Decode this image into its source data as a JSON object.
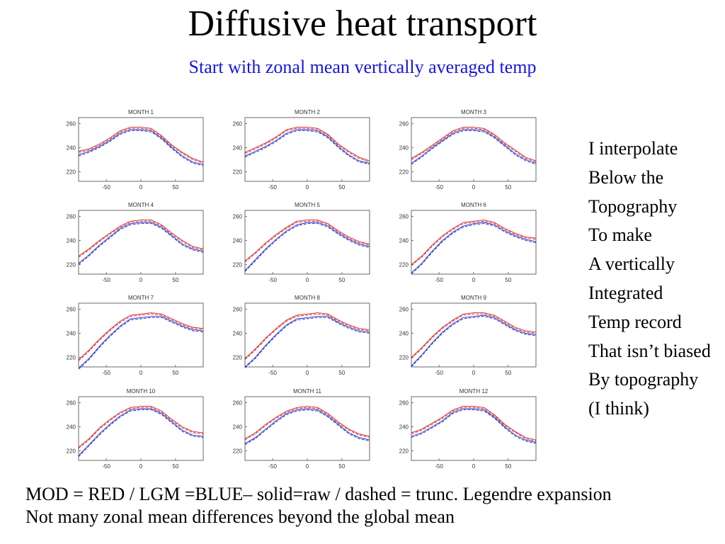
{
  "title": "Diffusive heat transport",
  "subtitle": "Start with zonal mean vertically averaged temp",
  "side_text": [
    "I interpolate",
    "Below the",
    "Topography",
    "To make",
    "A vertically",
    "Integrated",
    "Temp record",
    "That isn’t biased",
    "By topography",
    "(I think)"
  ],
  "footer": [
    "MOD = RED / LGM =BLUE– solid=raw / dashed = trunc. Legendre expansion",
    "Not many zonal mean differences beyond the global mean"
  ],
  "colors": {
    "mod": "#d42020",
    "lgm": "#1a2bc8",
    "subtitle": "#1515e6"
  },
  "chart_data": [
    {
      "type": "line",
      "title": "MONTH 1",
      "xticks": [
        -50,
        0,
        50
      ],
      "yticks": [
        220,
        240,
        260
      ],
      "xlim": [
        -90,
        90
      ],
      "ylim": [
        212,
        265
      ],
      "x": [
        -90,
        -75,
        -60,
        -45,
        -30,
        -15,
        0,
        15,
        30,
        45,
        60,
        75,
        90
      ],
      "series": [
        {
          "values": [
            237,
            239,
            243,
            248,
            254,
            257,
            257,
            256,
            250,
            242,
            236,
            231,
            228
          ]
        },
        {
          "values": [
            234,
            237,
            241,
            246,
            252,
            255,
            255,
            254,
            248,
            240,
            233,
            228,
            226
          ]
        }
      ]
    },
    {
      "type": "line",
      "title": "MONTH 2",
      "xticks": [
        -50,
        0,
        50
      ],
      "yticks": [
        220,
        240,
        260
      ],
      "xlim": [
        -90,
        90
      ],
      "ylim": [
        212,
        265
      ],
      "x": [
        -90,
        -75,
        -60,
        -45,
        -30,
        -15,
        0,
        15,
        30,
        45,
        60,
        75,
        90
      ],
      "series": [
        {
          "values": [
            236,
            240,
            244,
            249,
            255,
            257,
            257,
            256,
            251,
            243,
            237,
            232,
            229
          ]
        },
        {
          "values": [
            233,
            237,
            241,
            246,
            252,
            255,
            255,
            254,
            249,
            241,
            234,
            229,
            227
          ]
        }
      ]
    },
    {
      "type": "line",
      "title": "MONTH 3",
      "xticks": [
        -50,
        0,
        50
      ],
      "yticks": [
        220,
        240,
        260
      ],
      "xlim": [
        -90,
        90
      ],
      "ylim": [
        212,
        265
      ],
      "x": [
        -90,
        -75,
        -60,
        -45,
        -30,
        -15,
        0,
        15,
        30,
        45,
        60,
        75,
        90
      ],
      "series": [
        {
          "values": [
            231,
            236,
            242,
            248,
            254,
            257,
            257,
            256,
            251,
            244,
            238,
            232,
            229
          ]
        },
        {
          "values": [
            227,
            233,
            240,
            246,
            252,
            255,
            255,
            254,
            249,
            242,
            235,
            230,
            227
          ]
        }
      ]
    },
    {
      "type": "line",
      "title": "MONTH 4",
      "xticks": [
        -50,
        0,
        50
      ],
      "yticks": [
        220,
        240,
        260
      ],
      "xlim": [
        -90,
        90
      ],
      "ylim": [
        212,
        265
      ],
      "x": [
        -90,
        -75,
        -60,
        -45,
        -30,
        -15,
        0,
        15,
        30,
        45,
        60,
        75,
        90
      ],
      "series": [
        {
          "values": [
            227,
            233,
            240,
            246,
            252,
            256,
            257,
            257,
            253,
            246,
            240,
            235,
            233
          ]
        },
        {
          "values": [
            221,
            228,
            236,
            243,
            250,
            254,
            255,
            255,
            251,
            244,
            237,
            233,
            231
          ]
        }
      ]
    },
    {
      "type": "line",
      "title": "MONTH 5",
      "xticks": [
        -50,
        0,
        50
      ],
      "yticks": [
        220,
        240,
        260
      ],
      "xlim": [
        -90,
        90
      ],
      "ylim": [
        212,
        265
      ],
      "x": [
        -90,
        -75,
        -60,
        -45,
        -30,
        -15,
        0,
        15,
        30,
        45,
        60,
        75,
        90
      ],
      "series": [
        {
          "values": [
            223,
            230,
            238,
            245,
            251,
            256,
            257,
            257,
            254,
            248,
            243,
            239,
            237
          ]
        },
        {
          "values": [
            215,
            224,
            233,
            241,
            248,
            253,
            255,
            255,
            252,
            246,
            241,
            237,
            235
          ]
        }
      ]
    },
    {
      "type": "line",
      "title": "MONTH 6",
      "xticks": [
        -50,
        0,
        50
      ],
      "yticks": [
        220,
        240,
        260
      ],
      "xlim": [
        -90,
        90
      ],
      "ylim": [
        212,
        265
      ],
      "x": [
        -90,
        -75,
        -60,
        -45,
        -30,
        -15,
        0,
        15,
        30,
        45,
        60,
        75,
        90
      ],
      "series": [
        {
          "values": [
            220,
            227,
            236,
            244,
            250,
            255,
            256,
            257,
            255,
            250,
            246,
            243,
            242
          ]
        },
        {
          "values": [
            213,
            221,
            231,
            240,
            247,
            252,
            254,
            255,
            253,
            248,
            244,
            241,
            239
          ]
        }
      ]
    },
    {
      "type": "line",
      "title": "MONTH 7",
      "xticks": [
        -50,
        0,
        50
      ],
      "yticks": [
        220,
        240,
        260
      ],
      "xlim": [
        -90,
        90
      ],
      "ylim": [
        212,
        265
      ],
      "x": [
        -90,
        -75,
        -60,
        -45,
        -30,
        -15,
        0,
        15,
        30,
        45,
        60,
        75,
        90
      ],
      "series": [
        {
          "values": [
            218,
            226,
            235,
            243,
            250,
            255,
            256,
            257,
            256,
            252,
            248,
            245,
            244
          ]
        },
        {
          "values": [
            211,
            219,
            229,
            238,
            246,
            252,
            253,
            254,
            254,
            250,
            246,
            243,
            242
          ]
        }
      ]
    },
    {
      "type": "line",
      "title": "MONTH 8",
      "xticks": [
        -50,
        0,
        50
      ],
      "yticks": [
        220,
        240,
        260
      ],
      "xlim": [
        -90,
        90
      ],
      "ylim": [
        212,
        265
      ],
      "x": [
        -90,
        -75,
        -60,
        -45,
        -30,
        -15,
        0,
        15,
        30,
        45,
        60,
        75,
        90
      ],
      "series": [
        {
          "values": [
            219,
            227,
            236,
            244,
            251,
            255,
            256,
            257,
            256,
            251,
            247,
            244,
            243
          ]
        },
        {
          "values": [
            212,
            220,
            230,
            239,
            247,
            252,
            253,
            254,
            254,
            249,
            245,
            242,
            241
          ]
        }
      ]
    },
    {
      "type": "line",
      "title": "MONTH 9",
      "xticks": [
        -50,
        0,
        50
      ],
      "yticks": [
        220,
        240,
        260
      ],
      "xlim": [
        -90,
        90
      ],
      "ylim": [
        212,
        265
      ],
      "x": [
        -90,
        -75,
        -60,
        -45,
        -30,
        -15,
        0,
        15,
        30,
        45,
        60,
        75,
        90
      ],
      "series": [
        {
          "values": [
            220,
            228,
            237,
            245,
            251,
            256,
            257,
            257,
            255,
            250,
            245,
            242,
            241
          ]
        },
        {
          "values": [
            213,
            222,
            232,
            241,
            248,
            253,
            254,
            255,
            253,
            248,
            243,
            240,
            239
          ]
        }
      ]
    },
    {
      "type": "line",
      "title": "MONTH 10",
      "xticks": [
        -50,
        0,
        50
      ],
      "yticks": [
        220,
        240,
        260
      ],
      "xlim": [
        -90,
        90
      ],
      "ylim": [
        212,
        265
      ],
      "x": [
        -90,
        -75,
        -60,
        -45,
        -30,
        -15,
        0,
        15,
        30,
        45,
        60,
        75,
        90
      ],
      "series": [
        {
          "values": [
            223,
            230,
            239,
            246,
            252,
            256,
            257,
            257,
            253,
            246,
            240,
            236,
            235
          ]
        },
        {
          "values": [
            216,
            225,
            234,
            242,
            249,
            254,
            255,
            255,
            251,
            244,
            237,
            233,
            232
          ]
        }
      ]
    },
    {
      "type": "line",
      "title": "MONTH 11",
      "xticks": [
        -50,
        0,
        50
      ],
      "yticks": [
        220,
        240,
        260
      ],
      "xlim": [
        -90,
        90
      ],
      "ylim": [
        212,
        265
      ],
      "x": [
        -90,
        -75,
        -60,
        -45,
        -30,
        -15,
        0,
        15,
        30,
        45,
        60,
        75,
        90
      ],
      "series": [
        {
          "values": [
            230,
            235,
            242,
            248,
            253,
            256,
            257,
            256,
            251,
            244,
            238,
            234,
            232
          ]
        },
        {
          "values": [
            226,
            231,
            238,
            245,
            251,
            254,
            255,
            254,
            249,
            242,
            235,
            231,
            229
          ]
        }
      ]
    },
    {
      "type": "line",
      "title": "MONTH 12",
      "xticks": [
        -50,
        0,
        50
      ],
      "yticks": [
        220,
        240,
        260
      ],
      "xlim": [
        -90,
        90
      ],
      "ylim": [
        212,
        265
      ],
      "x": [
        -90,
        -75,
        -60,
        -45,
        -30,
        -15,
        0,
        15,
        30,
        45,
        60,
        75,
        90
      ],
      "series": [
        {
          "values": [
            235,
            238,
            243,
            248,
            254,
            257,
            257,
            256,
            250,
            242,
            236,
            231,
            229
          ]
        },
        {
          "values": [
            232,
            235,
            240,
            245,
            252,
            255,
            255,
            254,
            248,
            240,
            233,
            229,
            227
          ]
        }
      ]
    }
  ]
}
